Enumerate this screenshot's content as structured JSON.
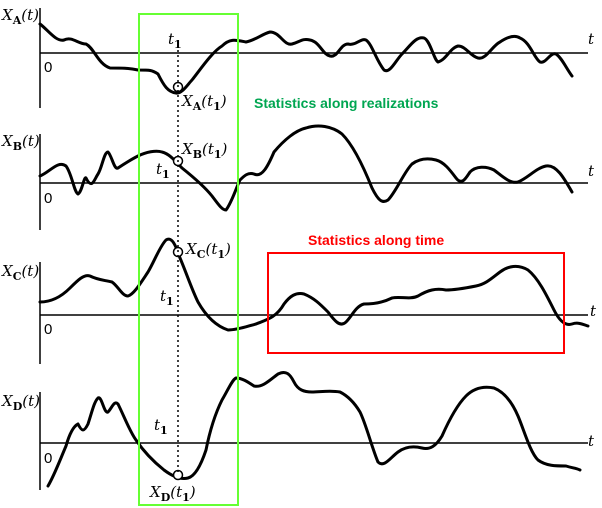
{
  "panels": [
    {
      "id": "A",
      "symbol": "X",
      "subscript": "A",
      "arg": "(t)",
      "zero": "0",
      "t_label": "t",
      "t1": {
        "symbol": "t",
        "subscript": "1"
      },
      "point": {
        "symbol": "X",
        "subscript": "A",
        "arg_open": "(",
        "t_symbol": "t",
        "t_sub": "1",
        "arg_close": ")"
      }
    },
    {
      "id": "B",
      "symbol": "X",
      "subscript": "B",
      "arg": "(t)",
      "zero": "0",
      "t_label": "t",
      "t1": {
        "symbol": "t",
        "subscript": "1"
      },
      "point": {
        "symbol": "X",
        "subscript": "B",
        "arg_open": "(",
        "t_symbol": "t",
        "t_sub": "1",
        "arg_close": ")"
      }
    },
    {
      "id": "C",
      "symbol": "X",
      "subscript": "C",
      "arg": "(t)",
      "zero": "0",
      "t_label": "t",
      "t1": {
        "symbol": "t",
        "subscript": "1"
      },
      "point": {
        "symbol": "X",
        "subscript": "C",
        "arg_open": "(",
        "t_symbol": "t",
        "t_sub": "1",
        "arg_close": ")"
      }
    },
    {
      "id": "D",
      "symbol": "X",
      "subscript": "D",
      "arg": "(t)",
      "zero": "0",
      "t_label": "t",
      "t1": {
        "symbol": "t",
        "subscript": "1"
      },
      "point": {
        "symbol": "X",
        "subscript": "D",
        "arg_open": "(",
        "t_symbol": "t",
        "t_sub": "1",
        "arg_close": ")"
      }
    }
  ],
  "annotations": {
    "realizations": {
      "text": "Statistics along realizations",
      "color": "#00a651"
    },
    "time": {
      "text": "Statistics along time",
      "color": "#ff0000"
    }
  },
  "colors": {
    "realization_box": "#66ff33",
    "time_box": "#ff0000",
    "curve": "#000000"
  }
}
